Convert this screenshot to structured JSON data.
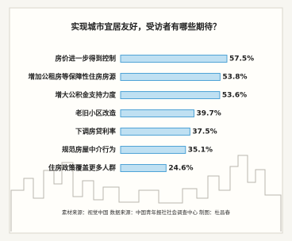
{
  "chart_data": {
    "type": "bar",
    "orientation": "horizontal",
    "title": "实现城市宜居友好，受访者有哪些期待？",
    "categories": [
      "房价进一步得到控制",
      "增加公租房等保障性住房房源",
      "增大公积金支持力度",
      "老旧小区改造",
      "下调房贷利率",
      "规范房屋中介行为",
      "住房政策覆盖更多人群"
    ],
    "values": [
      57.5,
      53.8,
      53.6,
      39.7,
      37.5,
      35.1,
      24.6
    ],
    "value_labels": [
      "57.5%",
      "53.8%",
      "53.6%",
      "39.7%",
      "37.5%",
      "35.1%",
      "24.6%"
    ],
    "color": "#bfe0f2",
    "note": "素材来源：视觉中国  数据来源：中国青年报社社会调查中心  制图：杜昌春"
  }
}
